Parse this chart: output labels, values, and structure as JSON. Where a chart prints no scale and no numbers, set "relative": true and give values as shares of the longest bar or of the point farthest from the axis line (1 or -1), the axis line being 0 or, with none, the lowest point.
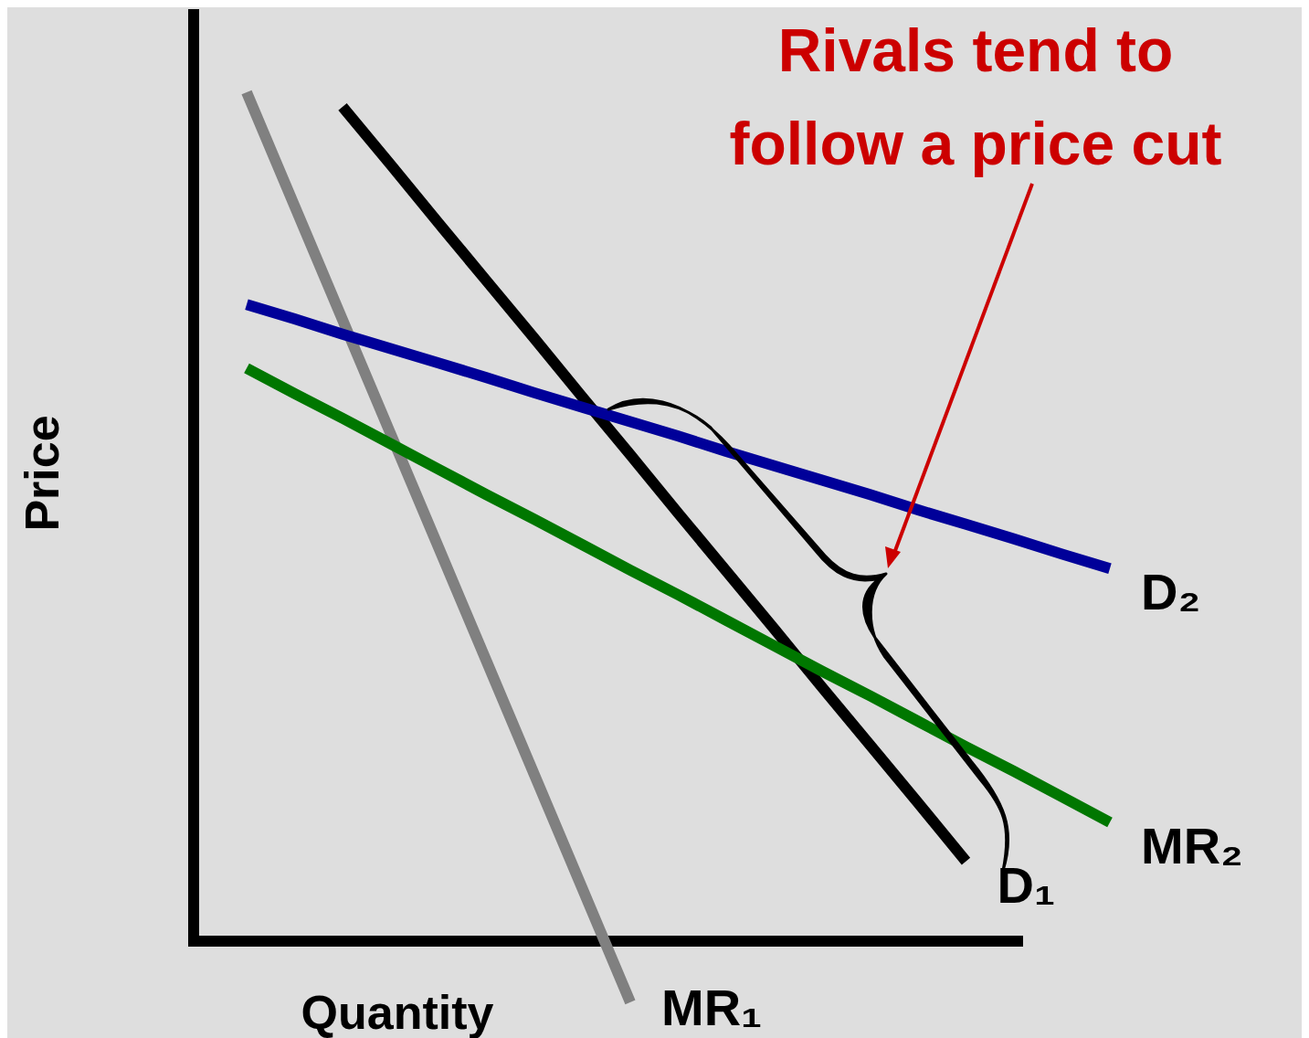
{
  "chart_data": {
    "type": "line",
    "relative": true,
    "xlabel": "Quantity",
    "ylabel": "Price",
    "annotations": [
      "Rivals tend to follow a price cut"
    ],
    "categories": [
      null,
      null,
      null,
      null,
      null,
      null,
      null,
      null,
      null,
      null,
      null,
      null,
      null,
      null,
      null,
      null,
      null,
      null,
      null
    ],
    "series": [
      {
        "name": "D₁",
        "color": "#000000",
        "values": [
          null,
          null,
          0.983,
          0.915,
          0.846,
          0.778,
          0.71,
          0.641,
          0.573,
          0.504,
          0.436,
          0.368,
          0.299,
          0.231,
          0.163,
          0.094,
          null,
          null,
          null
        ]
      },
      {
        "name": "MR₁",
        "color": "#808080",
        "values": [
          1,
          0.866,
          0.732,
          0.598,
          0.464,
          0.33,
          0.196,
          0.062,
          -0.072,
          null,
          null,
          null,
          null,
          null,
          null,
          null,
          null,
          null,
          null
        ]
      },
      {
        "name": "D₂",
        "color": "#000099",
        "values": [
          0.75,
          0.733,
          0.715,
          0.698,
          0.681,
          0.664,
          0.646,
          0.629,
          0.612,
          0.595,
          0.577,
          0.56,
          0.543,
          0.526,
          0.508,
          0.491,
          0.474,
          0.456,
          0.439
        ]
      },
      {
        "name": "MR₂",
        "color": "#007700",
        "values": [
          0.675,
          0.645,
          0.616,
          0.586,
          0.556,
          0.526,
          0.497,
          0.467,
          0.437,
          0.408,
          0.378,
          0.348,
          0.318,
          0.289,
          0.259,
          0.229,
          0.2,
          0.17,
          0.14
        ]
      }
    ]
  }
}
